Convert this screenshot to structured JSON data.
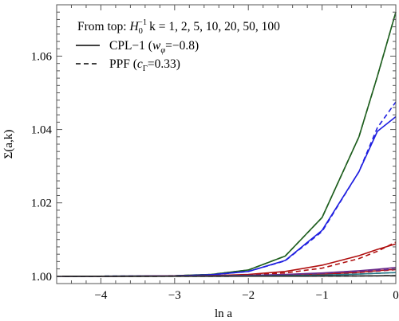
{
  "chart_data": {
    "type": "line",
    "xlabel": "ln a",
    "ylabel": "Σ(a,k)",
    "xlim": [
      -4.6,
      0
    ],
    "ylim": [
      0.998,
      1.074
    ],
    "xticks": [
      -4,
      -3,
      -2,
      -1,
      0
    ],
    "xtick_labels": [
      "−4",
      "−3",
      "−2",
      "−1",
      "0"
    ],
    "yticks": [
      1.0,
      1.02,
      1.04,
      1.06
    ],
    "ytick_labels": [
      "1.00",
      "1.02",
      "1.04",
      "1.06"
    ],
    "grid": false,
    "legend_placement": "top-left",
    "legend": {
      "note_prefix": "From top: ",
      "note_sym": "H",
      "note_sub": "0",
      "note_sup": "−1",
      "note_rest": "k = 1, 2, 5, 10, 20, 50, 100",
      "solid_prefix": "CPL−1 (",
      "solid_sym": "w",
      "solid_sub": "φ",
      "solid_suffix": "=−0.8)",
      "dashed_prefix": "PPF (",
      "dashed_sym": "c",
      "dashed_sub": "Γ",
      "dashed_suffix": "=0.33)"
    },
    "x": [
      -4.6,
      -4.0,
      -3.5,
      -3.0,
      -2.5,
      -2.0,
      -1.5,
      -1.0,
      -0.5,
      -0.25,
      0.0
    ],
    "series": [
      {
        "label": "k=1 CPL-1",
        "color": "#1e5e1e",
        "dash": false,
        "values": [
          1.0,
          1.00001,
          1.00004,
          1.00014,
          1.0005,
          1.0017,
          1.0055,
          1.016,
          1.038,
          1.0545,
          1.072
        ]
      },
      {
        "label": "k=1 PPF",
        "color": "#1e5e1e",
        "dash": true,
        "values": [
          1.0,
          1.00001,
          1.00004,
          1.00014,
          1.0005,
          1.0017,
          1.0055,
          1.016,
          1.038,
          1.0545,
          1.072
        ]
      },
      {
        "label": "k=2 CPL-1",
        "color": "#1f1fe0",
        "dash": false,
        "values": [
          1.0,
          1.00001,
          1.00003,
          1.0001,
          1.0004,
          1.0013,
          1.0043,
          1.0125,
          1.0285,
          1.0395,
          1.0435
        ]
      },
      {
        "label": "k=2 PPF",
        "color": "#1f1fe0",
        "dash": true,
        "values": [
          1.0,
          1.00001,
          1.00003,
          1.0001,
          1.0004,
          1.0013,
          1.0042,
          1.0122,
          1.0285,
          1.0405,
          1.0475
        ]
      },
      {
        "label": "k=5 CPL-1",
        "color": "#b01010",
        "dash": false,
        "values": [
          1.0,
          1.0,
          1.00001,
          1.00005,
          1.00015,
          1.0005,
          1.0013,
          1.003,
          1.0056,
          1.0073,
          1.0088
        ]
      },
      {
        "label": "k=5 PPF",
        "color": "#b01010",
        "dash": true,
        "values": [
          1.0,
          1.0,
          1.00001,
          1.00005,
          1.00015,
          1.0004,
          1.0009,
          1.0022,
          1.0048,
          1.0068,
          1.0093
        ]
      },
      {
        "label": "k=10 CPL-1",
        "color": "#b01010",
        "dash": false,
        "values": [
          1.0,
          1.0,
          1.0,
          1.00001,
          1.00004,
          1.0001,
          1.00025,
          1.00055,
          1.0011,
          1.0015,
          1.0019
        ]
      },
      {
        "label": "k=10 PPF",
        "color": "#b01010",
        "dash": true,
        "values": [
          1.0,
          1.0,
          1.0,
          1.00001,
          1.00004,
          1.0001,
          1.00022,
          1.0005,
          1.001,
          1.0014,
          1.0018
        ]
      },
      {
        "label": "k=20 CPL-1",
        "color": "#6a2a8a",
        "dash": false,
        "values": [
          1.0,
          1.0,
          1.00002,
          1.00005,
          1.0001,
          1.00025,
          1.0005,
          1.0009,
          1.0015,
          1.0019,
          1.0024
        ]
      },
      {
        "label": "k=20 PPF",
        "color": "#6a2a8a",
        "dash": true,
        "values": [
          1.0,
          1.0,
          1.00002,
          1.00005,
          1.0001,
          1.00022,
          1.00045,
          1.0008,
          1.0013,
          1.0016,
          1.002
        ]
      },
      {
        "label": "k=50 CPL-1",
        "color": "#2a7a8a",
        "dash": false,
        "values": [
          1.0,
          1.0,
          1.0,
          1.00001,
          1.00003,
          1.00007,
          1.00015,
          1.0003,
          1.0006,
          1.0008,
          1.001
        ]
      },
      {
        "label": "k=50 PPF",
        "color": "#2a7a8a",
        "dash": true,
        "values": [
          1.0,
          1.0,
          1.0,
          1.00001,
          1.00003,
          1.00007,
          1.00015,
          1.0003,
          1.0006,
          1.0008,
          1.001
        ]
      },
      {
        "label": "k=100 CPL-1",
        "color": "#222222",
        "dash": false,
        "values": [
          1.0,
          1.0,
          1.0,
          1.0,
          1.0,
          1.00001,
          1.00002,
          1.00004,
          1.00008,
          1.00011,
          1.00015
        ]
      },
      {
        "label": "k=100 PPF",
        "color": "#222222",
        "dash": true,
        "values": [
          1.0,
          1.0,
          1.0,
          1.0,
          1.0,
          1.00001,
          1.00002,
          1.00004,
          1.00008,
          1.00011,
          1.00015
        ]
      }
    ]
  }
}
